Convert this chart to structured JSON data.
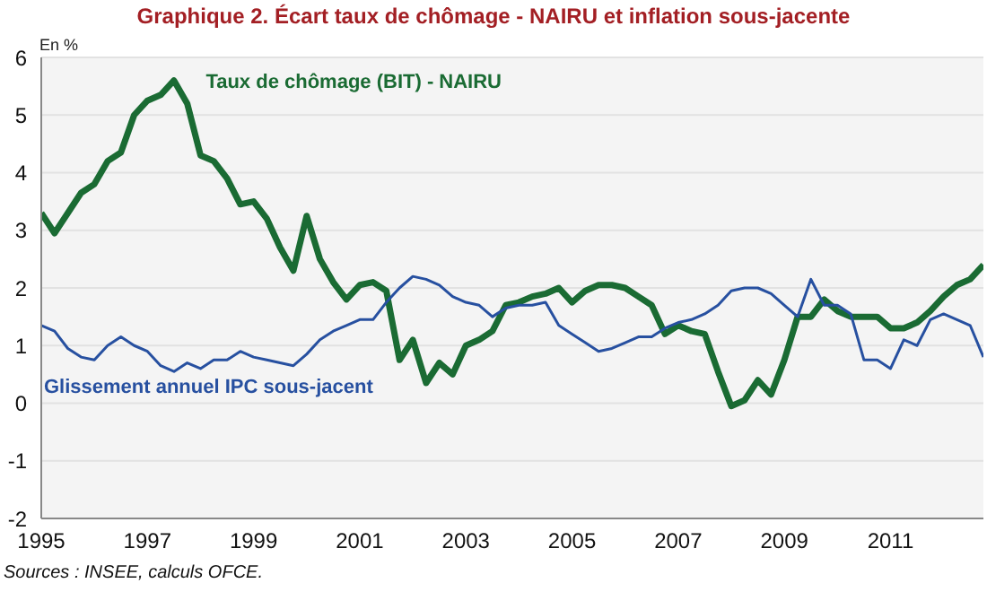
{
  "chart_data": {
    "type": "line",
    "title": "Graphique 2. Écart taux de chômage - NAIRU et inflation sous-jacente",
    "ylabel": "En %",
    "annotations": [
      "Sources : INSEE, calculs OFCE."
    ],
    "x": [
      1995,
      1995.25,
      1995.5,
      1995.75,
      1996,
      1996.25,
      1996.5,
      1996.75,
      1997,
      1997.25,
      1997.5,
      1997.75,
      1998,
      1998.25,
      1998.5,
      1998.75,
      1999,
      1999.25,
      1999.5,
      1999.75,
      2000,
      2000.25,
      2000.5,
      2000.75,
      2001,
      2001.25,
      2001.5,
      2001.75,
      2002,
      2002.25,
      2002.5,
      2002.75,
      2003,
      2003.25,
      2003.5,
      2003.75,
      2004,
      2004.25,
      2004.5,
      2004.75,
      2005,
      2005.25,
      2005.5,
      2005.75,
      2006,
      2006.25,
      2006.5,
      2006.75,
      2007,
      2007.25,
      2007.5,
      2007.75,
      2008,
      2008.25,
      2008.5,
      2008.75,
      2009,
      2009.25,
      2009.5,
      2009.75,
      2010,
      2010.25,
      2010.5,
      2010.75,
      2011,
      2011.25,
      2011.5,
      2011.75,
      2012,
      2012.25,
      2012.5,
      2012.75
    ],
    "series": [
      {
        "name": "Taux de chômage (BIT) - NAIRU",
        "color": "#1a6b33",
        "values": [
          3.3,
          2.95,
          3.3,
          3.65,
          3.8,
          4.2,
          4.35,
          5.0,
          5.25,
          5.35,
          5.6,
          5.2,
          4.3,
          4.2,
          3.9,
          3.45,
          3.5,
          3.2,
          2.7,
          2.3,
          3.25,
          2.5,
          2.1,
          1.8,
          2.05,
          2.1,
          1.95,
          0.75,
          1.1,
          0.35,
          0.7,
          0.5,
          1.0,
          1.1,
          1.25,
          1.7,
          1.75,
          1.85,
          1.9,
          2.0,
          1.75,
          1.95,
          2.05,
          2.05,
          2.0,
          1.85,
          1.7,
          1.2,
          1.35,
          1.25,
          1.2,
          0.55,
          -0.05,
          0.05,
          0.4,
          0.15,
          0.75,
          1.5,
          1.5,
          1.8,
          1.6,
          1.5,
          1.5,
          1.5,
          1.3,
          1.3,
          1.4,
          1.6,
          1.85,
          2.05,
          2.15,
          2.4
        ]
      },
      {
        "name": "Glissement annuel IPC sous-jacent",
        "color": "#2750a0",
        "values": [
          1.35,
          1.25,
          0.95,
          0.8,
          0.75,
          1.0,
          1.15,
          1.0,
          0.9,
          0.65,
          0.55,
          0.7,
          0.6,
          0.75,
          0.75,
          0.9,
          0.8,
          0.75,
          0.7,
          0.65,
          0.85,
          1.1,
          1.25,
          1.35,
          1.45,
          1.45,
          1.75,
          2.0,
          2.2,
          2.15,
          2.05,
          1.85,
          1.75,
          1.7,
          1.5,
          1.65,
          1.7,
          1.7,
          1.75,
          1.35,
          1.2,
          1.05,
          0.9,
          0.95,
          1.05,
          1.15,
          1.15,
          1.3,
          1.4,
          1.45,
          1.55,
          1.7,
          1.95,
          2.0,
          2.0,
          1.9,
          1.7,
          1.5,
          2.15,
          1.7,
          1.7,
          1.55,
          0.75,
          0.75,
          0.6,
          1.1,
          1.0,
          1.45,
          1.55,
          1.45,
          1.35,
          0.8
        ]
      }
    ],
    "xlim": [
      1995,
      2012.75
    ],
    "xticks": [
      1995,
      1997,
      1999,
      2001,
      2003,
      2005,
      2007,
      2009,
      2011
    ],
    "ylim": [
      -2,
      6
    ],
    "yticks": [
      -2,
      -1,
      0,
      1,
      2,
      3,
      4,
      5,
      6
    ],
    "grid": "y"
  }
}
